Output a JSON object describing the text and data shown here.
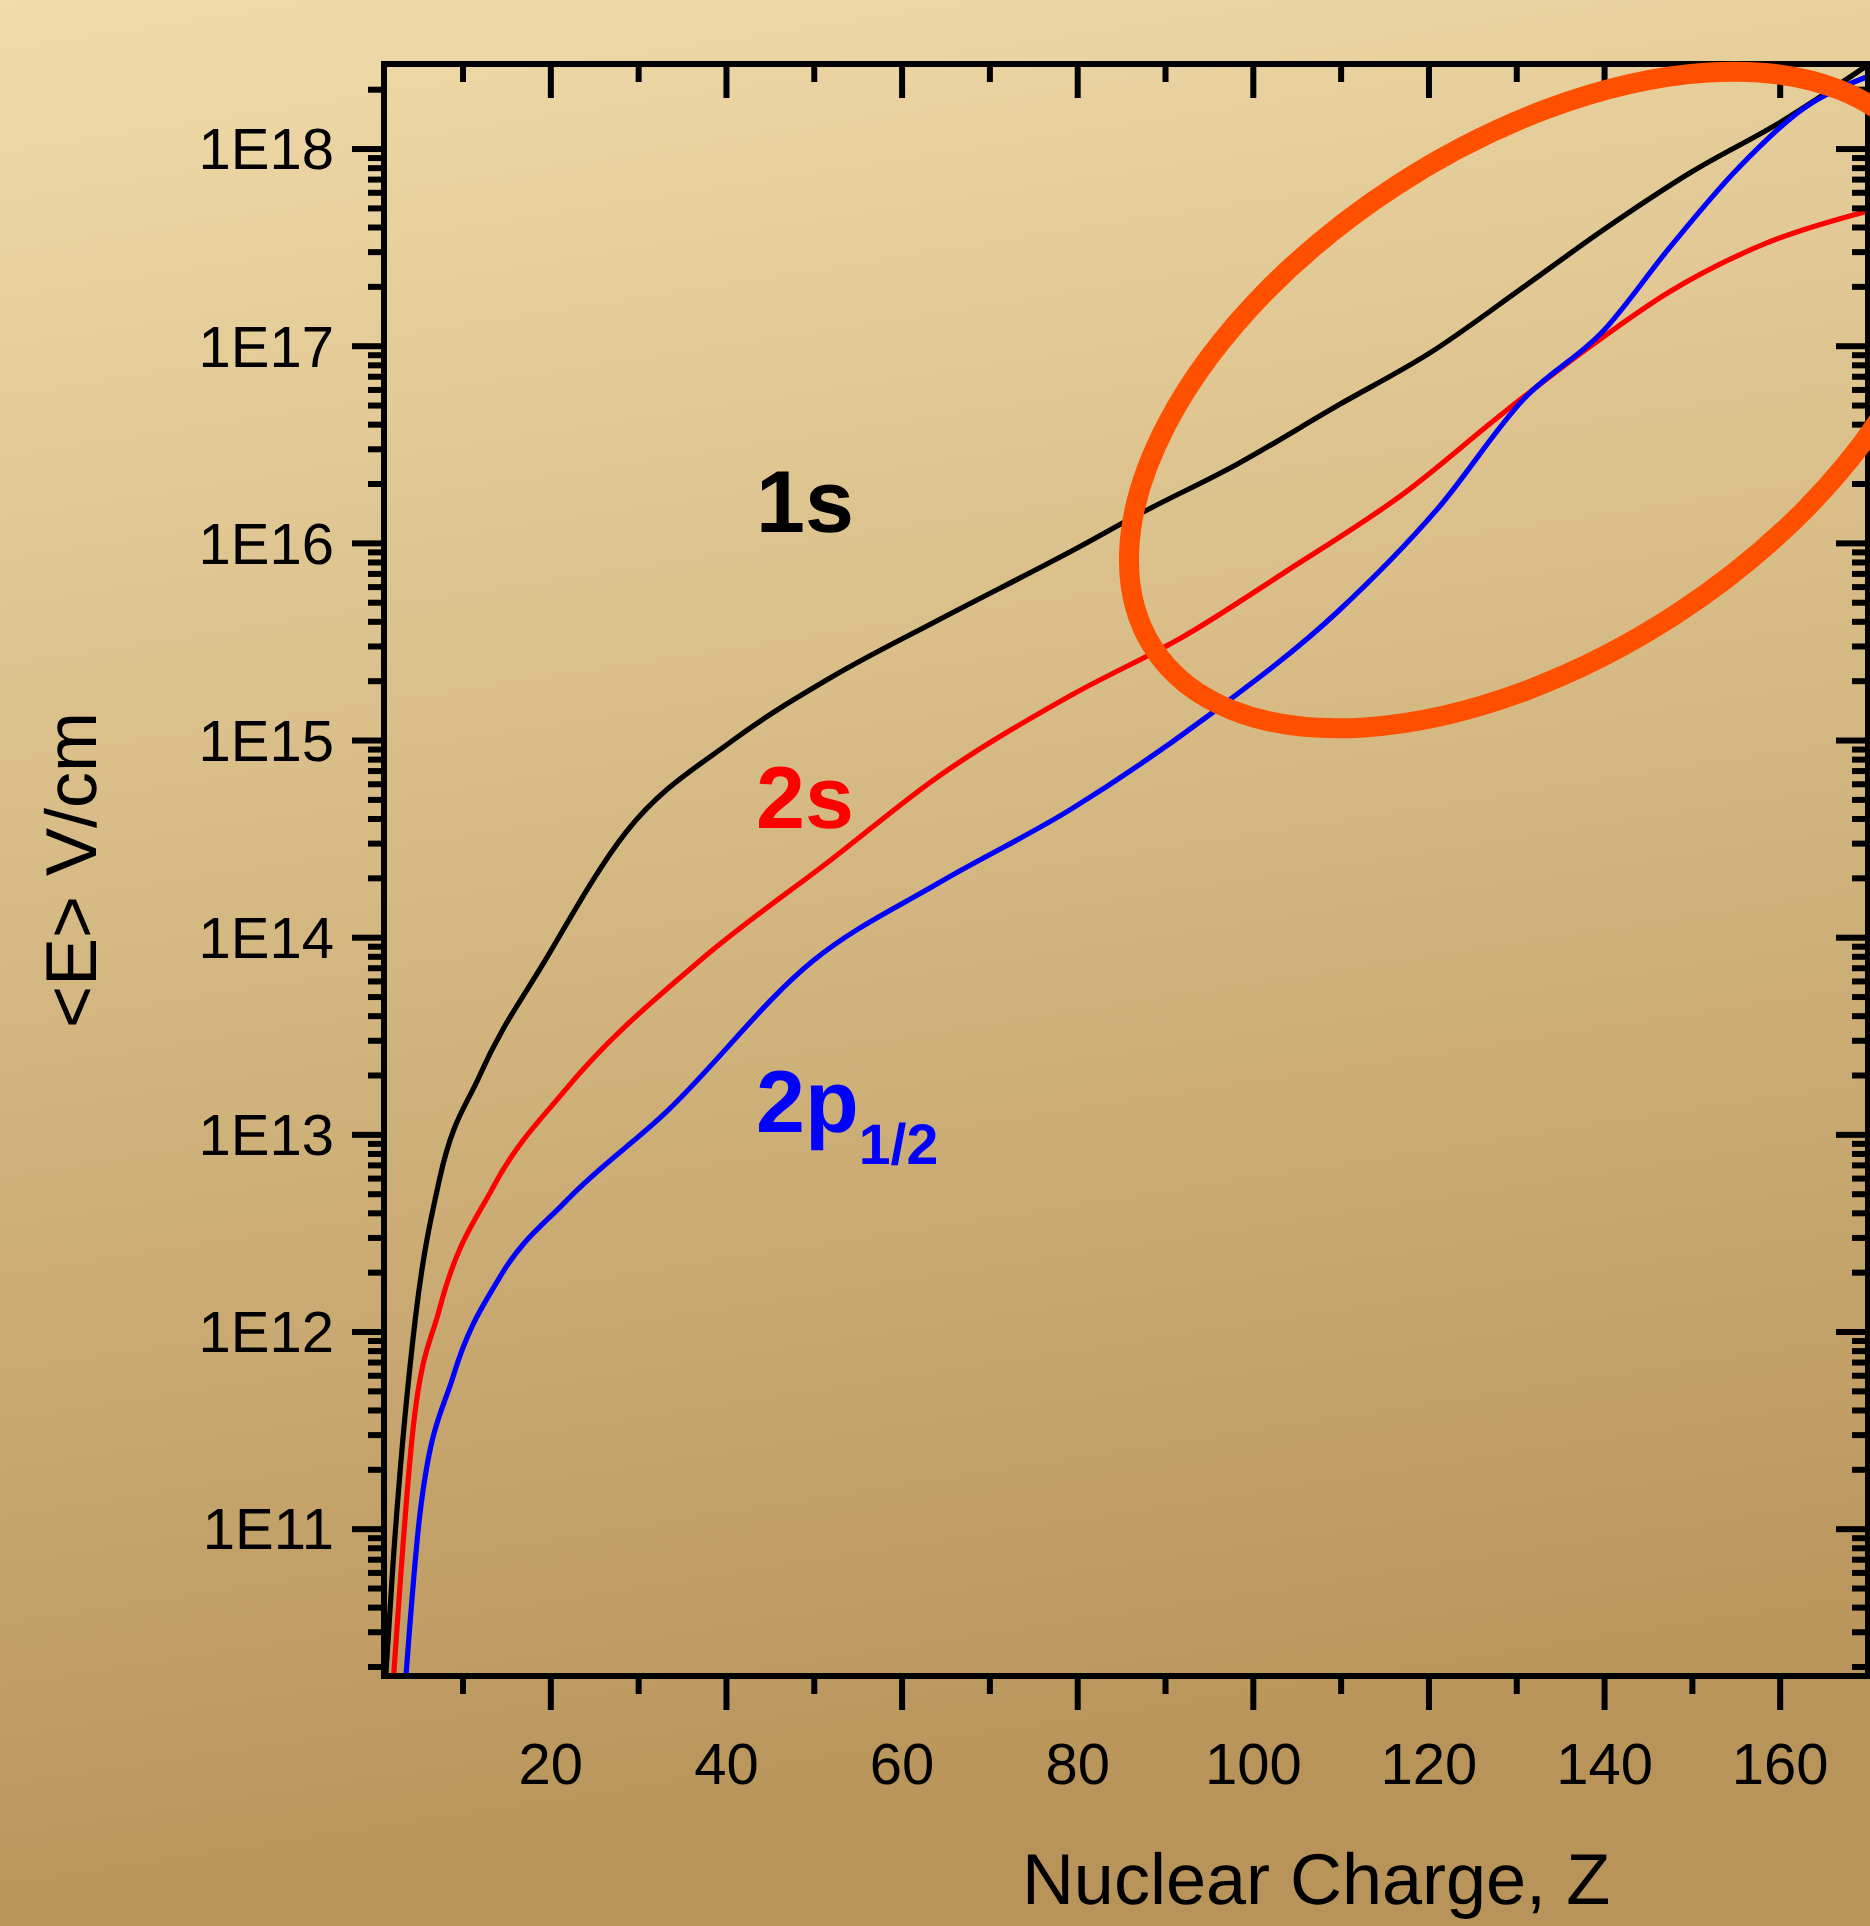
{
  "chart_data": {
    "type": "line",
    "xlabel": "Nuclear Charge, Z",
    "ylabel": "<E> V/cm",
    "log": "y",
    "xlim": [
      1,
      170
    ],
    "ylim": [
      18000000000.0,
      2.7e+18
    ],
    "xticks": [
      {
        "value": 10,
        "label": null
      },
      20,
      {
        "value": 30,
        "label": null
      },
      40,
      {
        "value": 50,
        "label": null
      },
      60,
      {
        "value": 70,
        "label": null
      },
      80,
      {
        "value": 90,
        "label": null
      },
      100,
      {
        "value": 110,
        "label": null
      },
      120,
      {
        "value": 130,
        "label": null
      },
      140,
      {
        "value": 150,
        "label": null
      },
      160
    ],
    "yticks": [
      {
        "value": 20000000000.0,
        "label": null
      },
      {
        "value": 30000000000.0,
        "label": null
      },
      {
        "value": 40000000000.0,
        "label": null
      },
      {
        "value": 50000000000.0,
        "label": null
      },
      {
        "value": 60000000000.0,
        "label": null
      },
      {
        "value": 70000000000.0,
        "label": null
      },
      {
        "value": 80000000000.0,
        "label": null
      },
      {
        "value": 90000000000.0,
        "label": null
      },
      {
        "value": 100000000000.0,
        "label": "1E11"
      },
      {
        "value": 200000000000.0,
        "label": null
      },
      {
        "value": 300000000000.0,
        "label": null
      },
      {
        "value": 400000000000.0,
        "label": null
      },
      {
        "value": 500000000000.0,
        "label": null
      },
      {
        "value": 600000000000.0,
        "label": null
      },
      {
        "value": 700000000000.0,
        "label": null
      },
      {
        "value": 800000000000.0,
        "label": null
      },
      {
        "value": 900000000000.0,
        "label": null
      },
      {
        "value": 1000000000000.0,
        "label": "1E12"
      },
      {
        "value": 2000000000000.0,
        "label": null
      },
      {
        "value": 3000000000000.0,
        "label": null
      },
      {
        "value": 4000000000000.0,
        "label": null
      },
      {
        "value": 5000000000000.0,
        "label": null
      },
      {
        "value": 6000000000000.0,
        "label": null
      },
      {
        "value": 7000000000000.0,
        "label": null
      },
      {
        "value": 8000000000000.0,
        "label": null
      },
      {
        "value": 9000000000000.0,
        "label": null
      },
      {
        "value": 10000000000000.0,
        "label": "1E13"
      },
      {
        "value": 20000000000000.0,
        "label": null
      },
      {
        "value": 30000000000000.0,
        "label": null
      },
      {
        "value": 40000000000000.0,
        "label": null
      },
      {
        "value": 50000000000000.0,
        "label": null
      },
      {
        "value": 60000000000000.0,
        "label": null
      },
      {
        "value": 70000000000000.0,
        "label": null
      },
      {
        "value": 80000000000000.0,
        "label": null
      },
      {
        "value": 90000000000000.0,
        "label": null
      },
      {
        "value": 100000000000000.0,
        "label": "1E14"
      },
      {
        "value": 200000000000000.0,
        "label": null
      },
      {
        "value": 300000000000000.0,
        "label": null
      },
      {
        "value": 400000000000000.0,
        "label": null
      },
      {
        "value": 500000000000000.0,
        "label": null
      },
      {
        "value": 600000000000000.0,
        "label": null
      },
      {
        "value": 700000000000000.0,
        "label": null
      },
      {
        "value": 800000000000000.0,
        "label": null
      },
      {
        "value": 900000000000000.0,
        "label": null
      },
      {
        "value": 1000000000000000.0,
        "label": "1E15"
      },
      {
        "value": 2000000000000000.0,
        "label": null
      },
      {
        "value": 3000000000000000.0,
        "label": null
      },
      {
        "value": 4000000000000000.0,
        "label": null
      },
      {
        "value": 5000000000000000.0,
        "label": null
      },
      {
        "value": 6000000000000000.0,
        "label": null
      },
      {
        "value": 7000000000000000.0,
        "label": null
      },
      {
        "value": 8000000000000000.0,
        "label": null
      },
      {
        "value": 9000000000000000.0,
        "label": null
      },
      {
        "value": 1e+16,
        "label": "1E16"
      },
      {
        "value": 2e+16,
        "label": null
      },
      {
        "value": 3e+16,
        "label": null
      },
      {
        "value": 4e+16,
        "label": null
      },
      {
        "value": 5e+16,
        "label": null
      },
      {
        "value": 6e+16,
        "label": null
      },
      {
        "value": 7e+16,
        "label": null
      },
      {
        "value": 8e+16,
        "label": null
      },
      {
        "value": 9e+16,
        "label": null
      },
      {
        "value": 1e+17,
        "label": "1E17"
      },
      {
        "value": 2e+17,
        "label": null
      },
      {
        "value": 3e+17,
        "label": null
      },
      {
        "value": 4e+17,
        "label": null
      },
      {
        "value": 5e+17,
        "label": null
      },
      {
        "value": 6e+17,
        "label": null
      },
      {
        "value": 7e+17,
        "label": null
      },
      {
        "value": 8e+17,
        "label": null
      },
      {
        "value": 9e+17,
        "label": null
      },
      {
        "value": 1e+18,
        "label": "1E18"
      },
      {
        "value": 2e+18,
        "label": null
      }
    ],
    "series": [
      {
        "name": "1s",
        "color": "#000000",
        "x": [
          1.2,
          2.05,
          4.6,
          7.3,
          11.9,
          19.3,
          28.5,
          40.7,
          52,
          64.2,
          80,
          86.9,
          98,
          109.6,
          120.2,
          130.8,
          139.9,
          149.8,
          160.4,
          169.6
        ],
        "values": [
          18000000000.0,
          69000000000.0,
          1200000000000.0,
          5900000000000.0,
          20000000000000.0,
          76000000000000.0,
          340000000000000.0,
          1000000000000000.0,
          2100000000000000.0,
          4100000000000000.0,
          9500000000000000.0,
          1.4e+16,
          2.5e+16,
          5e+16,
          9.3e+16,
          2e+17,
          3.9e+17,
          7.6e+17,
          1.4e+18,
          2.6e+18
        ]
      },
      {
        "name": "2s",
        "color": "#ff0000",
        "x": [
          2.1,
          4.3,
          7.3,
          13.4,
          21.7,
          36.9,
          52,
          64.2,
          79.3,
          92.2,
          103.5,
          117.2,
          128.5,
          138.4,
          147.5,
          158.9,
          169.6
        ],
        "values": [
          18000000000.0,
          320000000000.0,
          1300000000000.0,
          5400000000000.0,
          17000000000000.0,
          76000000000000.0,
          250000000000000.0,
          660000000000000.0,
          1700000000000000.0,
          3400000000000000.0,
          7100000000000000.0,
          1.8e+16,
          4.6e+16,
          1e+17,
          1.9e+17,
          3.4e+17,
          4.8e+17
        ]
      },
      {
        "name": "2p$_{1/2}$",
        "color": "#0000ff",
        "x": [
          3.5,
          5.1,
          8.9,
          14.2,
          21.7,
          33.1,
          49.8,
          64.2,
          79.3,
          94.5,
          109.6,
          121,
          130.8,
          139.9,
          147.5,
          155.1,
          162.6,
          169.6
        ],
        "values": [
          18000000000.0,
          120000000000.0,
          600000000000.0,
          1900000000000.0,
          4600000000000.0,
          13000000000000.0,
          76000000000000.0,
          190000000000000.0,
          450000000000000.0,
          1300000000000000.0,
          4500000000000000.0,
          1.5e+16,
          5.4e+16,
          1.2e+17,
          3.2e+17,
          7.9e+17,
          1.6e+18,
          2.3e+18
        ]
      }
    ]
  }
}
